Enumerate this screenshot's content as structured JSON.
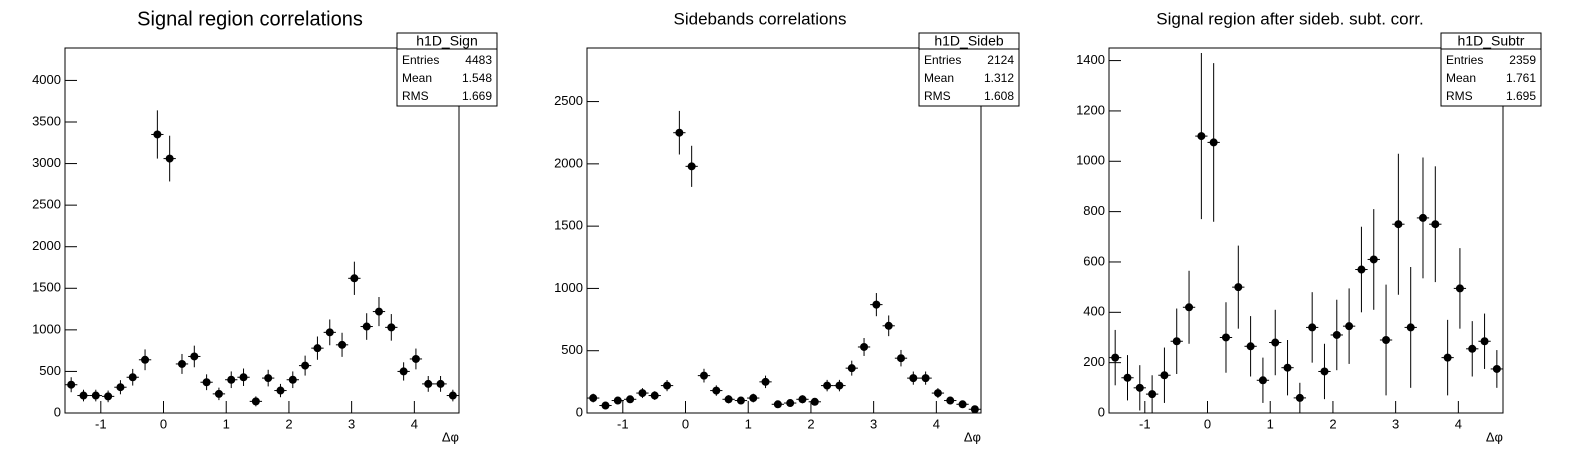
{
  "chart_data": [
    {
      "type": "histogram",
      "title": "Signal region correlations",
      "x_label": "Δφ",
      "color": "#000000",
      "bins": [
        -1.571,
        -1.374,
        -1.178,
        -0.982,
        -0.785,
        -0.589,
        -0.393,
        -0.196,
        0,
        0.196,
        0.393,
        0.589,
        0.785,
        0.982,
        1.178,
        1.374,
        1.571,
        1.767,
        1.963,
        2.16,
        2.356,
        2.553,
        2.749,
        2.945,
        3.142,
        3.338,
        3.534,
        3.731,
        3.927,
        4.123,
        4.32,
        4.516,
        4.712
      ],
      "values": [
        340,
        210,
        210,
        200,
        310,
        430,
        640,
        3350,
        3060,
        590,
        680,
        370,
        230,
        400,
        430,
        140,
        420,
        270,
        400,
        570,
        780,
        970,
        820,
        1620,
        1040,
        1220,
        1030,
        500,
        650,
        350,
        350,
        210
      ],
      "errors": [
        90,
        70,
        70,
        70,
        85,
        100,
        125,
        290,
        275,
        120,
        130,
        95,
        75,
        100,
        105,
        60,
        100,
        80,
        100,
        120,
        140,
        155,
        145,
        200,
        160,
        175,
        160,
        110,
        125,
        95,
        95,
        70
      ],
      "xlim": [
        -1.571,
        4.712
      ],
      "ylim": [
        0,
        4390
      ],
      "xticks": [
        -1,
        0,
        1,
        2,
        3,
        4
      ],
      "yticks": [
        0,
        500,
        1000,
        1500,
        2000,
        2500,
        3000,
        3500,
        4000
      ],
      "stats": {
        "name": "h1D_Sign",
        "rows": [
          {
            "label": "Entries",
            "value": 4483
          },
          {
            "label": "Mean",
            "value": 1.548
          },
          {
            "label": "RMS",
            "value": 1.669
          }
        ]
      }
    },
    {
      "type": "histogram",
      "title": "Sidebands correlations",
      "x_label": "Δφ",
      "color": "#000000",
      "bins": [
        -1.571,
        -1.374,
        -1.178,
        -0.982,
        -0.785,
        -0.589,
        -0.393,
        -0.196,
        0,
        0.196,
        0.393,
        0.589,
        0.785,
        0.982,
        1.178,
        1.374,
        1.571,
        1.767,
        1.963,
        2.16,
        2.356,
        2.553,
        2.749,
        2.945,
        3.142,
        3.338,
        3.534,
        3.731,
        3.927,
        4.123,
        4.32,
        4.516,
        4.712
      ],
      "values": [
        120,
        60,
        100,
        110,
        160,
        140,
        220,
        2250,
        1980,
        300,
        180,
        110,
        100,
        120,
        250,
        70,
        80,
        110,
        90,
        220,
        220,
        360,
        530,
        870,
        700,
        440,
        280,
        280,
        160,
        100,
        70,
        30
      ],
      "errors": [
        35,
        25,
        30,
        30,
        40,
        35,
        45,
        175,
        165,
        55,
        42,
        33,
        30,
        35,
        50,
        25,
        28,
        32,
        30,
        46,
        46,
        60,
        72,
        93,
        83,
        66,
        53,
        53,
        40,
        32,
        26,
        17
      ],
      "xlim": [
        -1.571,
        4.712
      ],
      "ylim": [
        0,
        2930
      ],
      "xticks": [
        -1,
        0,
        1,
        2,
        3,
        4
      ],
      "yticks": [
        0,
        500,
        1000,
        1500,
        2000,
        2500
      ],
      "stats": {
        "name": "h1D_Sideb",
        "rows": [
          {
            "label": "Entries",
            "value": 2124
          },
          {
            "label": "Mean",
            "value": 1.312
          },
          {
            "label": "RMS",
            "value": 1.608
          }
        ]
      }
    },
    {
      "type": "histogram",
      "title": "Signal region after sideb. subt. corr.",
      "x_label": "Δφ",
      "color": "#000000",
      "bins": [
        -1.571,
        -1.374,
        -1.178,
        -0.982,
        -0.785,
        -0.589,
        -0.393,
        -0.196,
        0,
        0.196,
        0.393,
        0.589,
        0.785,
        0.982,
        1.178,
        1.374,
        1.571,
        1.767,
        1.963,
        2.16,
        2.356,
        2.553,
        2.749,
        2.945,
        3.142,
        3.338,
        3.534,
        3.731,
        3.927,
        4.123,
        4.32,
        4.516,
        4.712
      ],
      "values": [
        220,
        140,
        100,
        75,
        150,
        285,
        420,
        1100,
        1075,
        300,
        500,
        265,
        130,
        280,
        180,
        60,
        340,
        165,
        310,
        345,
        570,
        610,
        290,
        750,
        340,
        775,
        750,
        220,
        495,
        255,
        285,
        175
      ],
      "errors": [
        110,
        90,
        90,
        75,
        110,
        130,
        145,
        330,
        315,
        140,
        165,
        120,
        90,
        130,
        110,
        60,
        140,
        110,
        140,
        150,
        170,
        200,
        220,
        280,
        240,
        240,
        230,
        150,
        160,
        110,
        110,
        75
      ],
      "xlim": [
        -1.571,
        4.712
      ],
      "ylim": [
        0,
        1450
      ],
      "xticks": [
        -1,
        0,
        1,
        2,
        3,
        4
      ],
      "yticks": [
        0,
        200,
        400,
        600,
        800,
        1000,
        1200,
        1400
      ],
      "stats": {
        "name": "h1D_Subtr",
        "rows": [
          {
            "label": "Entries",
            "value": 2359
          },
          {
            "label": "Mean",
            "value": 1.761
          },
          {
            "label": "RMS",
            "value": 1.695
          }
        ]
      }
    }
  ]
}
